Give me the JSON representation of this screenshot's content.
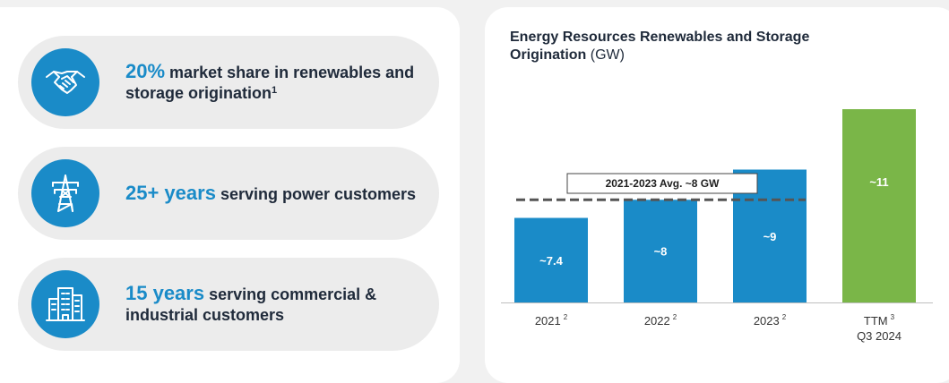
{
  "stats": [
    {
      "highlight": "20%",
      "text_after": " market share in renewables and storage origination",
      "sup": "1",
      "icon": "handshake-icon"
    },
    {
      "highlight": "25+ years",
      "text_after": " serving power customers",
      "sup": "",
      "icon": "power-tower-icon"
    },
    {
      "highlight": "15 years",
      "text_after": " serving commercial & industrial customers",
      "sup": "",
      "icon": "buildings-icon"
    }
  ],
  "colors": {
    "blue": "#1a8bc8",
    "green": "#7ab648",
    "dark": "#1f2a3a",
    "dash": "#555555"
  },
  "chart_data": {
    "type": "bar",
    "title_bold": "Energy Resources Renewables and Storage Origination",
    "title_unit": "(GW)",
    "categories": [
      {
        "label": "2021",
        "sup": "2",
        "line2": ""
      },
      {
        "label": "2022",
        "sup": "2",
        "line2": ""
      },
      {
        "label": "2023",
        "sup": "2",
        "line2": ""
      },
      {
        "label": "TTM",
        "sup": "3",
        "line2": "Q3 2024"
      }
    ],
    "values": [
      7.4,
      8,
      9,
      11
    ],
    "value_labels": [
      "~7.4",
      "~8",
      "~9",
      "~11"
    ],
    "bar_colors": [
      "#1a8bc8",
      "#1a8bc8",
      "#1a8bc8",
      "#7ab648"
    ],
    "reference_line": {
      "value": 8,
      "label": "2021-2023 Avg. ~8 GW"
    },
    "ylim": [
      4.6,
      11
    ]
  }
}
